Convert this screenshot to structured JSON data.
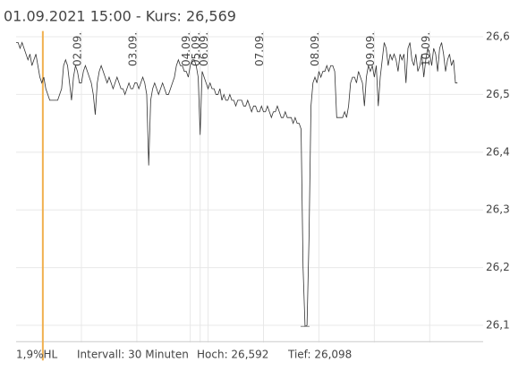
{
  "chart_data": {
    "type": "line",
    "title": "01.09.2021 15:00  -  Kurs: 26,569",
    "footer": [
      "1,9%HL",
      "Intervall: 30 Minuten",
      "Hoch:  26,592",
      "Tief:  26,098"
    ],
    "series": [
      {
        "name": "Kurs",
        "color": "#333333",
        "values": [
          26.59,
          26.59,
          26.58,
          26.59,
          26.58,
          26.57,
          26.56,
          26.57,
          26.55,
          26.56,
          26.57,
          26.55,
          26.53,
          26.52,
          26.53,
          26.51,
          26.5,
          26.49,
          26.49,
          26.49,
          26.49,
          26.49,
          26.5,
          26.51,
          26.55,
          26.56,
          26.55,
          26.52,
          26.49,
          26.53,
          26.55,
          26.54,
          26.52,
          26.52,
          26.54,
          26.55,
          26.54,
          26.53,
          26.52,
          26.5,
          26.465,
          26.52,
          26.54,
          26.55,
          26.54,
          26.53,
          26.52,
          26.53,
          26.52,
          26.51,
          26.52,
          26.53,
          26.52,
          26.51,
          26.51,
          26.5,
          26.51,
          26.52,
          26.51,
          26.51,
          26.52,
          26.52,
          26.51,
          26.52,
          26.53,
          26.52,
          26.5,
          26.377,
          26.49,
          26.51,
          26.52,
          26.51,
          26.5,
          26.51,
          26.52,
          26.51,
          26.5,
          26.5,
          26.51,
          26.52,
          26.53,
          26.55,
          26.56,
          26.55,
          26.55,
          26.54,
          26.54,
          26.53,
          26.55,
          26.56,
          26.56,
          26.55,
          26.53,
          26.43,
          26.54,
          26.53,
          26.52,
          26.51,
          26.52,
          26.51,
          26.51,
          26.5,
          26.5,
          26.51,
          26.49,
          26.5,
          26.49,
          26.49,
          26.5,
          26.49,
          26.49,
          26.48,
          26.49,
          26.49,
          26.49,
          26.48,
          26.48,
          26.49,
          26.48,
          26.47,
          26.48,
          26.48,
          26.47,
          26.47,
          26.48,
          26.47,
          26.47,
          26.48,
          26.47,
          26.46,
          26.47,
          26.47,
          26.48,
          26.47,
          26.46,
          26.46,
          26.47,
          26.46,
          26.46,
          26.46,
          26.45,
          26.46,
          26.45,
          26.45,
          26.44,
          26.2,
          26.098,
          26.1,
          26.25,
          26.48,
          26.52,
          26.53,
          26.52,
          26.54,
          26.53,
          26.54,
          26.54,
          26.55,
          26.54,
          26.55,
          26.55,
          26.54,
          26.46,
          26.46,
          26.46,
          26.46,
          26.47,
          26.46,
          26.48,
          26.52,
          26.53,
          26.53,
          26.52,
          26.54,
          26.53,
          26.52,
          26.48,
          26.53,
          26.55,
          26.54,
          26.55,
          26.53,
          26.55,
          26.48,
          26.53,
          26.56,
          26.59,
          26.58,
          26.55,
          26.57,
          26.56,
          26.57,
          26.56,
          26.54,
          26.57,
          26.56,
          26.57,
          26.52,
          26.58,
          26.59,
          26.56,
          26.55,
          26.57,
          26.54,
          26.55,
          26.57,
          26.53,
          26.56,
          26.58,
          26.57,
          26.55,
          26.58,
          26.57,
          26.54,
          26.58,
          26.59,
          26.57,
          26.54,
          26.56,
          26.57,
          26.55,
          26.56,
          26.52,
          26.52
        ]
      }
    ],
    "xlim": [
      0,
      236
    ],
    "xticks": [
      {
        "value": 33,
        "label": "02.09."
      },
      {
        "value": 61,
        "label": "03.09."
      },
      {
        "value": 88,
        "label": "04.09."
      },
      {
        "value": 93,
        "label": "05.09."
      },
      {
        "value": 97,
        "label": "06.09."
      },
      {
        "value": 125,
        "label": "07.09."
      },
      {
        "value": 153,
        "label": "08.09."
      },
      {
        "value": 181,
        "label": "09.09."
      },
      {
        "value": 209,
        "label": "10.09."
      }
    ],
    "ylim": [
      26.07,
      26.61
    ],
    "yticks": [
      {
        "value": 26.1,
        "label": "26,1"
      },
      {
        "value": 26.2,
        "label": "26,2"
      },
      {
        "value": 26.3,
        "label": "26,3"
      },
      {
        "value": 26.4,
        "label": "26,4"
      },
      {
        "value": 26.5,
        "label": "26,5"
      },
      {
        "value": 26.6,
        "label": "26,6"
      }
    ],
    "grid": true,
    "cursor": {
      "x": 13.5,
      "color": "#f0b050"
    }
  }
}
